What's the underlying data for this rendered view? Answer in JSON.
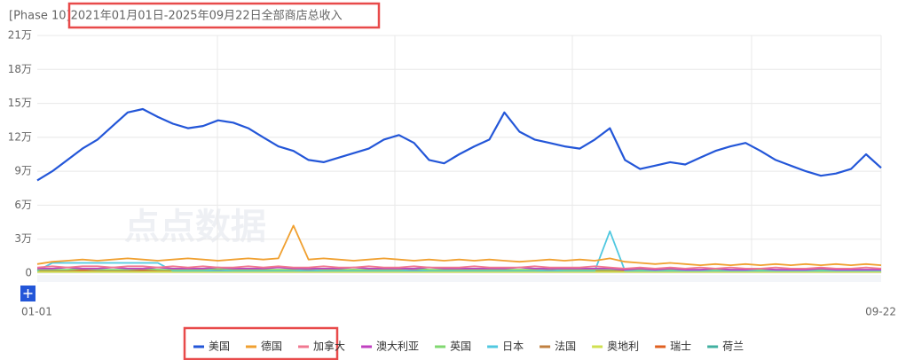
{
  "chart_data": {
    "type": "line",
    "title": "[Phase 10]2021年01月01日-2025年09月22日全部商店总收入",
    "watermark": "点点数据",
    "categories": [
      "01-01",
      null,
      null,
      null,
      null,
      null,
      null,
      null,
      null,
      null,
      null,
      null,
      null,
      null,
      null,
      null,
      null,
      null,
      null,
      null,
      null,
      null,
      null,
      null,
      null,
      null,
      null,
      null,
      null,
      null,
      null,
      null,
      null,
      null,
      null,
      null,
      null,
      null,
      null,
      null,
      null,
      null,
      null,
      null,
      null,
      null,
      null,
      null,
      null,
      null,
      null,
      null,
      null,
      null,
      null,
      null,
      "09-22"
    ],
    "ylim": [
      0,
      210000
    ],
    "yticks": [
      {
        "value": 0,
        "label": "0"
      },
      {
        "value": 30000,
        "label": "3万"
      },
      {
        "value": 60000,
        "label": "6万"
      },
      {
        "value": 90000,
        "label": "9万"
      },
      {
        "value": 120000,
        "label": "12万"
      },
      {
        "value": 150000,
        "label": "15万"
      },
      {
        "value": 180000,
        "label": "18万"
      },
      {
        "value": 210000,
        "label": "21万"
      }
    ],
    "grid": true,
    "series": [
      {
        "name": "美国",
        "color": "#2356d8",
        "values": [
          82000,
          90000,
          100000,
          110000,
          118000,
          130000,
          142000,
          145000,
          138000,
          132000,
          128000,
          130000,
          135000,
          133000,
          128000,
          120000,
          112000,
          108000,
          100000,
          98000,
          102000,
          106000,
          110000,
          118000,
          122000,
          115000,
          100000,
          97000,
          105000,
          112000,
          118000,
          142000,
          125000,
          118000,
          115000,
          112000,
          110000,
          118000,
          128000,
          100000,
          92000,
          95000,
          98000,
          96000,
          102000,
          108000,
          112000,
          115000,
          108000,
          100000,
          95000,
          90000,
          86000,
          88000,
          92000,
          105000,
          93000
        ]
      },
      {
        "name": "德国",
        "color": "#f0a030",
        "values": [
          8000,
          10000,
          11000,
          12000,
          11000,
          12000,
          13000,
          12000,
          11000,
          12000,
          13000,
          12000,
          11000,
          12000,
          13000,
          12000,
          13000,
          42000,
          12000,
          13000,
          12000,
          11000,
          12000,
          13000,
          12000,
          11000,
          12000,
          11000,
          12000,
          11000,
          12000,
          11000,
          10000,
          11000,
          12000,
          11000,
          12000,
          11000,
          13000,
          10000,
          9000,
          8000,
          9000,
          8000,
          7000,
          8000,
          7000,
          8000,
          7000,
          8000,
          7000,
          8000,
          7000,
          8000,
          7000,
          8000,
          7000
        ]
      },
      {
        "name": "加拿大",
        "color": "#f07890",
        "values": [
          5000,
          6000,
          5000,
          6000,
          6000,
          5000,
          6000,
          6000,
          5000,
          6000,
          5000,
          6000,
          5000,
          5000,
          6000,
          5000,
          6000,
          5000,
          5000,
          6000,
          5000,
          5000,
          6000,
          5000,
          5000,
          6000,
          5000,
          5000,
          5000,
          6000,
          5000,
          5000,
          5000,
          6000,
          5000,
          5000,
          5000,
          6000,
          5000,
          4000,
          5000,
          4000,
          5000,
          4000,
          5000,
          4000,
          5000,
          4000,
          4000,
          5000,
          4000,
          4000,
          5000,
          4000,
          4000,
          5000,
          4000
        ]
      },
      {
        "name": "澳大利亚",
        "color": "#c040c0",
        "values": [
          4000,
          4000,
          5000,
          4000,
          4000,
          5000,
          4000,
          4000,
          5000,
          4000,
          4000,
          4000,
          5000,
          4000,
          4000,
          4000,
          5000,
          4000,
          4000,
          4000,
          4000,
          5000,
          4000,
          4000,
          4000,
          4000,
          5000,
          4000,
          4000,
          4000,
          4000,
          4000,
          5000,
          4000,
          4000,
          4000,
          4000,
          4000,
          4000,
          3000,
          4000,
          3000,
          4000,
          3000,
          3000,
          4000,
          3000,
          3000,
          4000,
          3000,
          3000,
          3000,
          4000,
          3000,
          3000,
          3000,
          3000
        ]
      },
      {
        "name": "英国",
        "color": "#80d870",
        "values": [
          3000,
          3000,
          3000,
          4000,
          3000,
          3000,
          3000,
          4000,
          3000,
          3000,
          3000,
          3000,
          4000,
          3000,
          3000,
          3000,
          3000,
          3000,
          4000,
          3000,
          3000,
          3000,
          3000,
          3000,
          3000,
          4000,
          3000,
          3000,
          3000,
          3000,
          3000,
          3000,
          3000,
          3000,
          4000,
          3000,
          3000,
          3000,
          3000,
          3000,
          3000,
          3000,
          3000,
          3000,
          3000,
          3000,
          3000,
          3000,
          3000,
          3000,
          3000,
          3000,
          3000,
          3000,
          3000,
          3000,
          3000
        ]
      },
      {
        "name": "日本",
        "color": "#50c8e0",
        "values": [
          2000,
          9000,
          9000,
          9000,
          9000,
          9000,
          9000,
          9000,
          9000,
          2000,
          2000,
          2000,
          2000,
          2000,
          2000,
          2000,
          2000,
          2000,
          2000,
          2000,
          2000,
          2000,
          2000,
          2000,
          2000,
          2000,
          2000,
          2000,
          2000,
          2000,
          2000,
          2000,
          2000,
          2000,
          2000,
          2000,
          2000,
          2000,
          37000,
          2000,
          2000,
          2000,
          2000,
          2000,
          2000,
          2000,
          2000,
          2000,
          2000,
          2000,
          2000,
          2000,
          2000,
          2000,
          2000,
          2000,
          2000
        ]
      },
      {
        "name": "法国",
        "color": "#c08040",
        "values": [
          2500,
          2500,
          2500,
          3000,
          2500,
          2500,
          2500,
          2500,
          3000,
          2500,
          2500,
          2500,
          2500,
          2500,
          3000,
          2500,
          2500,
          2500,
          2500,
          2500,
          2500,
          3000,
          2500,
          2500,
          2500,
          2500,
          2500,
          2500,
          2500,
          3000,
          2500,
          2500,
          2500,
          2500,
          2500,
          2500,
          2500,
          2500,
          2500,
          2500,
          2500,
          2500,
          2500,
          2500,
          2500,
          2500,
          2500,
          2500,
          2500,
          2500,
          2500,
          2500,
          2500,
          2500,
          2500,
          2500,
          2500
        ]
      },
      {
        "name": "奥地利",
        "color": "#d0e050",
        "values": [
          1000,
          1000,
          1000,
          1000,
          1000,
          1000,
          1000,
          1000,
          1000,
          1000,
          1000,
          1000,
          1000,
          1000,
          1000,
          1000,
          1000,
          1000,
          1000,
          1000,
          1000,
          1000,
          1000,
          1000,
          1000,
          1000,
          1000,
          1000,
          1000,
          1000,
          1000,
          1000,
          1000,
          1000,
          1000,
          1000,
          1000,
          1000,
          1000,
          1000,
          1000,
          1000,
          1000,
          1000,
          1000,
          1000,
          1000,
          1000,
          1000,
          1000,
          1000,
          1000,
          1000,
          1000,
          1000,
          1000,
          1000
        ]
      },
      {
        "name": "瑞士",
        "color": "#e06020",
        "values": [
          2000,
          2000,
          2000,
          2000,
          2000,
          2000,
          2000,
          2000,
          2000,
          2000,
          2000,
          2000,
          2000,
          2000,
          2000,
          2000,
          2000,
          2000,
          2000,
          2000,
          2000,
          2000,
          2000,
          2000,
          2000,
          2000,
          2000,
          2000,
          2000,
          2000,
          2000,
          2000,
          2000,
          2000,
          2000,
          2000,
          2000,
          2000,
          2000,
          2000,
          2000,
          2000,
          2000,
          2000,
          2000,
          2000,
          2000,
          2000,
          2000,
          2000,
          2000,
          2000,
          2000,
          2000,
          2000,
          2000,
          2000
        ]
      },
      {
        "name": "荷兰",
        "color": "#40b0a0",
        "values": [
          1500,
          1500,
          1500,
          1500,
          1500,
          1500,
          1500,
          1500,
          1500,
          1500,
          1500,
          1500,
          1500,
          1500,
          1500,
          1500,
          1500,
          1500,
          1500,
          1500,
          1500,
          1500,
          1500,
          1500,
          1500,
          1500,
          1500,
          1500,
          1500,
          1500,
          1500,
          1500,
          1500,
          1500,
          1500,
          1500,
          1500,
          1500,
          1500,
          1500,
          1500,
          1500,
          1500,
          1500,
          1500,
          1500,
          1500,
          1500,
          1500,
          1500,
          1500,
          1500,
          1500,
          1500,
          1500,
          1500,
          1500
        ]
      }
    ]
  }
}
